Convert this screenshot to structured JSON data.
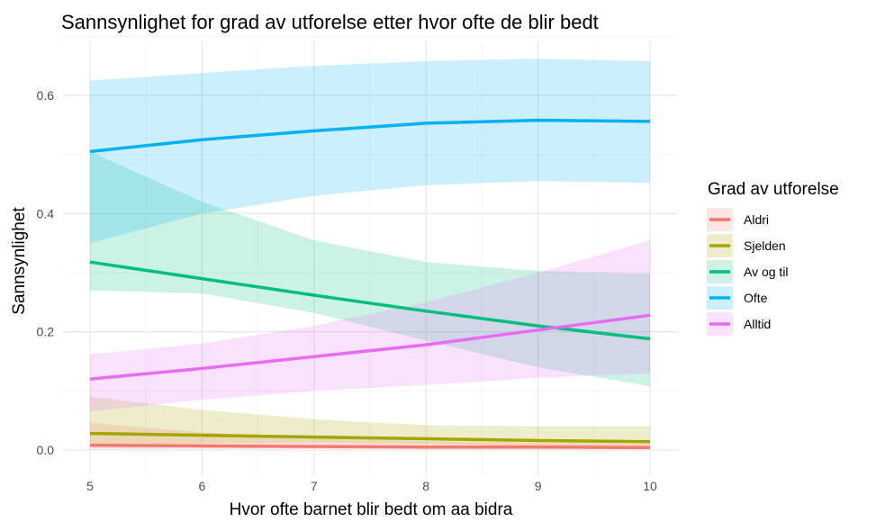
{
  "chart_data": {
    "type": "line",
    "title": "Sannsynlighet for grad av utforelse etter hvor ofte de blir bedt",
    "xlabel": "Hvor ofte barnet blir bedt om aa bidra",
    "ylabel": "Sannsynlighet",
    "xlim": [
      5,
      10
    ],
    "ylim": [
      0,
      0.6
    ],
    "x_ticks": [
      5,
      6,
      7,
      8,
      9,
      10
    ],
    "y_ticks": [
      "0.0",
      "0.2",
      "0.4",
      "0.6"
    ],
    "x_tick_labels": [
      "5",
      "6",
      "7",
      "8",
      "9",
      "10"
    ],
    "grid": true,
    "legend_title": "Grad av utforelse",
    "legend_position": "right",
    "x": [
      5,
      6,
      7,
      8,
      9,
      10
    ],
    "series": [
      {
        "name": "Aldri",
        "color": "#F8766D",
        "values": [
          0.008,
          0.007,
          0.006,
          0.005,
          0.005,
          0.004
        ],
        "lower": [
          0.001,
          0.002,
          0.002,
          0.001,
          0.001,
          0.001
        ],
        "upper": [
          0.046,
          0.03,
          0.02,
          0.015,
          0.012,
          0.01
        ]
      },
      {
        "name": "Sjelden",
        "color": "#A3A500",
        "values": [
          0.028,
          0.025,
          0.022,
          0.019,
          0.016,
          0.014
        ],
        "lower": [
          0.008,
          0.011,
          0.012,
          0.01,
          0.007,
          0.004
        ],
        "upper": [
          0.09,
          0.068,
          0.052,
          0.042,
          0.04,
          0.04
        ]
      },
      {
        "name": "Av og til",
        "color": "#00BF7D",
        "values": [
          0.318,
          0.29,
          0.262,
          0.235,
          0.21,
          0.188
        ],
        "lower": [
          0.27,
          0.265,
          0.232,
          0.185,
          0.14,
          0.108
        ],
        "upper": [
          0.505,
          0.42,
          0.355,
          0.318,
          0.303,
          0.298
        ]
      },
      {
        "name": "Ofte",
        "color": "#00B0F6",
        "values": [
          0.505,
          0.525,
          0.54,
          0.553,
          0.558,
          0.556
        ],
        "lower": [
          0.35,
          0.4,
          0.43,
          0.448,
          0.455,
          0.452
        ],
        "upper": [
          0.625,
          0.638,
          0.65,
          0.658,
          0.662,
          0.658
        ]
      },
      {
        "name": "Alltid",
        "color": "#E76BF3",
        "values": [
          0.12,
          0.138,
          0.158,
          0.178,
          0.203,
          0.228
        ],
        "lower": [
          0.065,
          0.085,
          0.1,
          0.11,
          0.122,
          0.13
        ],
        "upper": [
          0.162,
          0.18,
          0.21,
          0.25,
          0.3,
          0.355
        ]
      }
    ]
  }
}
